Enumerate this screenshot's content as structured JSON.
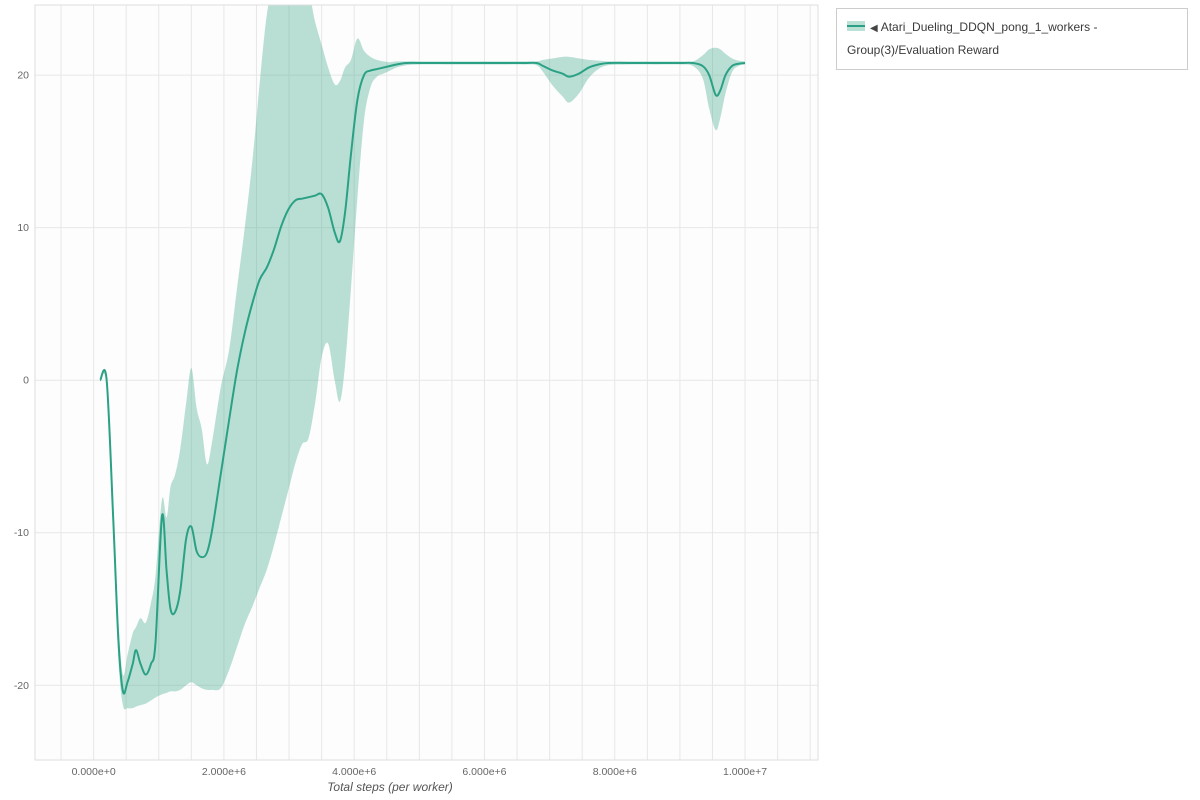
{
  "legend": {
    "marker": "◀",
    "label": "Atari_Dueling_DDQN_pong_1_workers - Group(3)/Evaluation Reward"
  },
  "chart_data": {
    "type": "line",
    "title": "",
    "xlabel": "Total steps (per worker)",
    "ylabel": "",
    "grid": true,
    "legend_position": "outside-top-right",
    "xlim": [
      -900000,
      11120000
    ],
    "ylim": [
      -24.9,
      24.6
    ],
    "x_minor_grid_step": 500000,
    "x_ticks": [
      {
        "value": 0,
        "label": "0.000e+0"
      },
      {
        "value": 2000000,
        "label": "2.000e+6"
      },
      {
        "value": 4000000,
        "label": "4.000e+6"
      },
      {
        "value": 6000000,
        "label": "6.000e+6"
      },
      {
        "value": 8000000,
        "label": "8.000e+6"
      },
      {
        "value": 10000000,
        "label": "1.000e+7"
      }
    ],
    "y_ticks": [
      {
        "value": -20,
        "label": "-20"
      },
      {
        "value": -10,
        "label": "-10"
      },
      {
        "value": 0,
        "label": "0"
      },
      {
        "value": 10,
        "label": "10"
      },
      {
        "value": 20,
        "label": "20"
      }
    ],
    "colors": {
      "line": "#2aa184",
      "band": "rgba(42,161,132,0.32)",
      "grid": "#e7e7e7",
      "border": "#dedede",
      "tick_text": "#666666"
    },
    "series": [
      {
        "name": "Atari_Dueling_DDQN_pong_1_workers - Group(3)/Evaluation Reward",
        "x": [
          100000.0,
          200000.0,
          300000.0,
          380000.0,
          450000.0,
          520000.0,
          600000.0,
          650000.0,
          720000.0,
          800000.0,
          880000.0,
          950000.0,
          1050000.0,
          1120000.0,
          1180000.0,
          1250000.0,
          1330000.0,
          1420000.0,
          1500000.0,
          1580000.0,
          1660000.0,
          1740000.0,
          1820000.0,
          1950000.0,
          2080000.0,
          2200000.0,
          2320000.0,
          2440000.0,
          2550000.0,
          2660000.0,
          2770000.0,
          2880000.0,
          2990000.0,
          3100000.0,
          3200000.0,
          3300000.0,
          3400000.0,
          3500000.0,
          3600000.0,
          3700000.0,
          3780000.0,
          3860000.0,
          3950000.0,
          4050000.0,
          4150000.0,
          4250000.0,
          4350000.0,
          4450000.0,
          4550000.0,
          4650000.0,
          4800000.0,
          5000000.0,
          5400000.0,
          5800000.0,
          6200000.0,
          6600000.0,
          6800000.0,
          6900000.0,
          7050000.0,
          7200000.0,
          7300000.0,
          7450000.0,
          7600000.0,
          7750000.0,
          7900000.0,
          8200000.0,
          8600000.0,
          9000000.0,
          9200000.0,
          9350000.0,
          9450000.0,
          9550000.0,
          9620000.0,
          9700000.0,
          9800000.0,
          9900000.0,
          10000000.0
        ],
        "mean": [
          0,
          0,
          -9,
          -17,
          -20.4,
          -19.8,
          -18.6,
          -17.7,
          -18.6,
          -19.3,
          -18.6,
          -17.2,
          -8.9,
          -12.5,
          -15.0,
          -15.2,
          -13.8,
          -10.4,
          -9.6,
          -11.2,
          -11.6,
          -11.3,
          -9.8,
          -6.2,
          -2.6,
          0.6,
          3.1,
          5.1,
          6.6,
          7.4,
          8.6,
          10.1,
          11.2,
          11.8,
          11.9,
          12.0,
          12.1,
          12.2,
          11.3,
          9.7,
          9.1,
          11.0,
          14.8,
          18.4,
          20.0,
          20.3,
          20.4,
          20.5,
          20.6,
          20.7,
          20.8,
          20.8,
          20.8,
          20.8,
          20.8,
          20.8,
          20.8,
          20.6,
          20.3,
          20.1,
          19.9,
          20.1,
          20.5,
          20.7,
          20.8,
          20.8,
          20.8,
          20.8,
          20.8,
          20.6,
          20.0,
          18.7,
          19.0,
          20.0,
          20.6,
          20.75,
          20.8
        ],
        "low": [
          0,
          -0.4,
          -10,
          -18.3,
          -21.3,
          -21.5,
          -21.5,
          -21.4,
          -21.3,
          -21.2,
          -21.0,
          -20.8,
          -20.6,
          -20.5,
          -20.4,
          -20.4,
          -20.3,
          -20.0,
          -19.8,
          -20.0,
          -20.2,
          -20.3,
          -20.3,
          -20.2,
          -19.0,
          -17.5,
          -16.0,
          -14.8,
          -13.6,
          -12.4,
          -10.8,
          -9.0,
          -7.2,
          -5.4,
          -4.2,
          -3.8,
          -1.5,
          1.5,
          2.4,
          0.0,
          -1.4,
          1.0,
          6.0,
          12.0,
          17.0,
          19.2,
          19.9,
          20.1,
          20.3,
          20.5,
          20.65,
          20.7,
          20.7,
          20.7,
          20.7,
          20.7,
          20.65,
          20.2,
          19.3,
          18.6,
          18.2,
          18.8,
          19.8,
          20.4,
          20.65,
          20.7,
          20.7,
          20.7,
          20.6,
          19.8,
          17.8,
          16.4,
          17.2,
          18.8,
          20.2,
          20.6,
          20.7
        ],
        "high": [
          0,
          0.2,
          -8,
          -15.8,
          -19.3,
          -18.0,
          -16.6,
          -16.2,
          -15.6,
          -15.9,
          -14.6,
          -12.8,
          -7.8,
          -9.0,
          -7.0,
          -6.2,
          -4.5,
          -1.5,
          0.8,
          -1.8,
          -3.2,
          -5.5,
          -4.0,
          -0.5,
          2.0,
          6.0,
          10.0,
          14.5,
          19.5,
          24.0,
          26.0,
          27.0,
          27.0,
          26.5,
          26.0,
          25.5,
          23.5,
          22.0,
          20.5,
          19.4,
          19.6,
          20.5,
          21.0,
          22.4,
          21.6,
          21.2,
          21.0,
          20.9,
          20.85,
          20.9,
          20.9,
          20.9,
          20.9,
          20.9,
          20.9,
          20.9,
          20.9,
          21.0,
          21.1,
          21.2,
          21.2,
          21.1,
          21.0,
          20.95,
          20.9,
          20.9,
          20.9,
          20.9,
          20.9,
          21.3,
          21.7,
          21.8,
          21.7,
          21.4,
          21.1,
          20.95,
          20.9
        ]
      }
    ]
  }
}
